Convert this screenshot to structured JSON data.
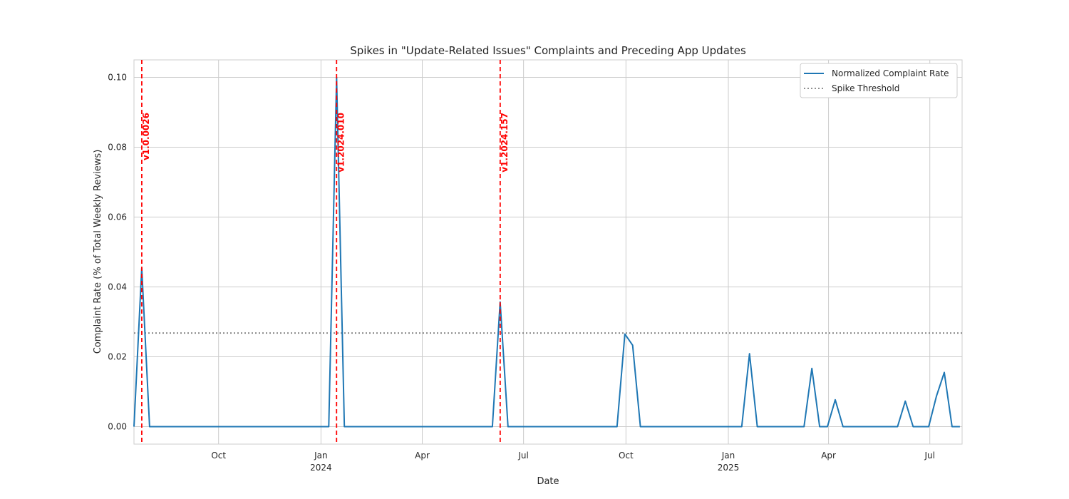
{
  "chart_data": {
    "type": "line",
    "title": "Spikes in \"Update-Related Issues\" Complaints and Preceding App Updates",
    "xlabel": "Date",
    "ylabel": "Complaint Rate (% of Total Weekly Reviews)",
    "xlim": [
      "2023-07-17",
      "2025-07-30"
    ],
    "ylim": [
      -0.005,
      0.105
    ],
    "grid": true,
    "legend_position": "top-right",
    "x_ticks": [
      {
        "date": "2023-10-01",
        "label": "Oct",
        "year": ""
      },
      {
        "date": "2024-01-01",
        "label": "Jan",
        "year": "2024"
      },
      {
        "date": "2024-04-01",
        "label": "Apr",
        "year": ""
      },
      {
        "date": "2024-07-01",
        "label": "Jul",
        "year": ""
      },
      {
        "date": "2024-10-01",
        "label": "Oct",
        "year": ""
      },
      {
        "date": "2025-01-01",
        "label": "Jan",
        "year": "2025"
      },
      {
        "date": "2025-04-01",
        "label": "Apr",
        "year": ""
      },
      {
        "date": "2025-07-01",
        "label": "Jul",
        "year": ""
      }
    ],
    "y_ticks": [
      {
        "value": 0.0,
        "label": "0.00"
      },
      {
        "value": 0.02,
        "label": "0.02"
      },
      {
        "value": 0.04,
        "label": "0.04"
      },
      {
        "value": 0.06,
        "label": "0.06"
      },
      {
        "value": 0.08,
        "label": "0.08"
      },
      {
        "value": 0.1,
        "label": "0.10"
      }
    ],
    "series": [
      {
        "name": "Normalized Complaint Rate",
        "color": "#1f77b4",
        "points": [
          [
            "2023-07-17",
            0.0
          ],
          [
            "2023-07-24",
            0.0454
          ],
          [
            "2023-07-31",
            0.0
          ],
          [
            "2023-08-07",
            0.0
          ],
          [
            "2023-08-14",
            0.0
          ],
          [
            "2023-08-21",
            0.0
          ],
          [
            "2023-08-28",
            0.0
          ],
          [
            "2023-09-04",
            0.0
          ],
          [
            "2023-09-11",
            0.0
          ],
          [
            "2023-09-18",
            0.0
          ],
          [
            "2023-09-25",
            0.0
          ],
          [
            "2023-10-02",
            0.0
          ],
          [
            "2023-10-09",
            0.0
          ],
          [
            "2023-10-16",
            0.0
          ],
          [
            "2023-10-23",
            0.0
          ],
          [
            "2023-10-30",
            0.0
          ],
          [
            "2023-11-06",
            0.0
          ],
          [
            "2023-11-13",
            0.0
          ],
          [
            "2023-11-20",
            0.0
          ],
          [
            "2023-11-27",
            0.0
          ],
          [
            "2023-12-04",
            0.0
          ],
          [
            "2023-12-11",
            0.0
          ],
          [
            "2023-12-18",
            0.0
          ],
          [
            "2023-12-25",
            0.0
          ],
          [
            "2024-01-01",
            0.0
          ],
          [
            "2024-01-08",
            0.0
          ],
          [
            "2024-01-15",
            0.1
          ],
          [
            "2024-01-22",
            0.0
          ],
          [
            "2024-01-29",
            0.0
          ],
          [
            "2024-02-05",
            0.0
          ],
          [
            "2024-02-12",
            0.0
          ],
          [
            "2024-02-19",
            0.0
          ],
          [
            "2024-02-26",
            0.0
          ],
          [
            "2024-03-04",
            0.0
          ],
          [
            "2024-03-11",
            0.0
          ],
          [
            "2024-03-18",
            0.0
          ],
          [
            "2024-03-25",
            0.0
          ],
          [
            "2024-04-01",
            0.0
          ],
          [
            "2024-04-08",
            0.0
          ],
          [
            "2024-04-15",
            0.0
          ],
          [
            "2024-04-22",
            0.0
          ],
          [
            "2024-04-29",
            0.0
          ],
          [
            "2024-05-06",
            0.0
          ],
          [
            "2024-05-13",
            0.0
          ],
          [
            "2024-05-20",
            0.0
          ],
          [
            "2024-05-27",
            0.0
          ],
          [
            "2024-06-03",
            0.0
          ],
          [
            "2024-06-10",
            0.0357
          ],
          [
            "2024-06-17",
            0.0
          ],
          [
            "2024-06-24",
            0.0
          ],
          [
            "2024-07-01",
            0.0
          ],
          [
            "2024-07-08",
            0.0
          ],
          [
            "2024-07-15",
            0.0
          ],
          [
            "2024-07-22",
            0.0
          ],
          [
            "2024-07-29",
            0.0
          ],
          [
            "2024-08-05",
            0.0
          ],
          [
            "2024-08-12",
            0.0
          ],
          [
            "2024-08-19",
            0.0
          ],
          [
            "2024-08-26",
            0.0
          ],
          [
            "2024-09-02",
            0.0
          ],
          [
            "2024-09-09",
            0.0
          ],
          [
            "2024-09-16",
            0.0
          ],
          [
            "2024-09-23",
            0.0
          ],
          [
            "2024-09-30",
            0.0265
          ],
          [
            "2024-10-07",
            0.0233
          ],
          [
            "2024-10-14",
            0.0
          ],
          [
            "2024-10-21",
            0.0
          ],
          [
            "2024-10-28",
            0.0
          ],
          [
            "2024-11-04",
            0.0
          ],
          [
            "2024-11-11",
            0.0
          ],
          [
            "2024-11-18",
            0.0
          ],
          [
            "2024-11-25",
            0.0
          ],
          [
            "2024-12-02",
            0.0
          ],
          [
            "2024-12-09",
            0.0
          ],
          [
            "2024-12-16",
            0.0
          ],
          [
            "2024-12-23",
            0.0
          ],
          [
            "2024-12-30",
            0.0
          ],
          [
            "2025-01-06",
            0.0
          ],
          [
            "2025-01-13",
            0.0
          ],
          [
            "2025-01-20",
            0.0209
          ],
          [
            "2025-01-27",
            0.0
          ],
          [
            "2025-02-03",
            0.0
          ],
          [
            "2025-02-10",
            0.0
          ],
          [
            "2025-02-17",
            0.0
          ],
          [
            "2025-02-24",
            0.0
          ],
          [
            "2025-03-03",
            0.0
          ],
          [
            "2025-03-10",
            0.0
          ],
          [
            "2025-03-17",
            0.0167
          ],
          [
            "2025-03-24",
            0.0
          ],
          [
            "2025-03-31",
            0.0
          ],
          [
            "2025-04-07",
            0.0077
          ],
          [
            "2025-04-14",
            0.0
          ],
          [
            "2025-04-21",
            0.0
          ],
          [
            "2025-04-28",
            0.0
          ],
          [
            "2025-05-05",
            0.0
          ],
          [
            "2025-05-12",
            0.0
          ],
          [
            "2025-05-19",
            0.0
          ],
          [
            "2025-05-26",
            0.0
          ],
          [
            "2025-06-02",
            0.0
          ],
          [
            "2025-06-09",
            0.0073
          ],
          [
            "2025-06-16",
            0.0
          ],
          [
            "2025-06-23",
            0.0
          ],
          [
            "2025-06-30",
            0.0
          ],
          [
            "2025-07-07",
            0.0088
          ],
          [
            "2025-07-14",
            0.0155
          ],
          [
            "2025-07-21",
            0.0
          ],
          [
            "2025-07-28",
            0.0
          ]
        ]
      }
    ],
    "threshold": {
      "name": "Spike Threshold",
      "value": 0.0268,
      "color": "#808080",
      "style": "dotted"
    },
    "updates": [
      {
        "date": "2023-07-24",
        "version": "v1.0.0026"
      },
      {
        "date": "2024-01-15",
        "version": "v1.2024.010"
      },
      {
        "date": "2024-06-10",
        "version": "v1.2024.157"
      }
    ],
    "update_line_color": "#ff0000"
  }
}
